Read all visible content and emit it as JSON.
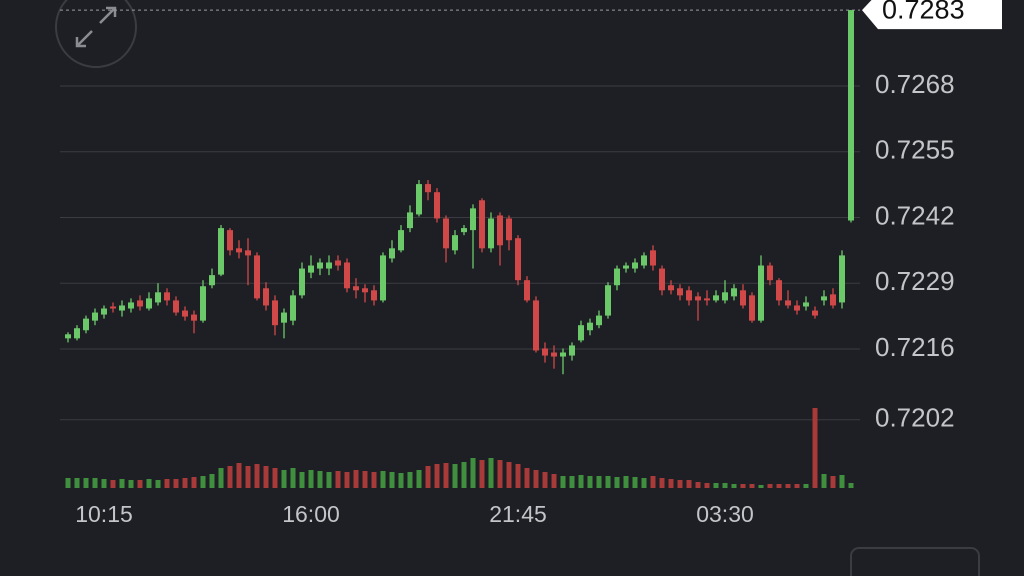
{
  "chart_data": {
    "type": "candlestick",
    "categories": [
      null,
      null,
      null,
      null,
      "10:15",
      null,
      null,
      null,
      null,
      null,
      null,
      null,
      null,
      null,
      null,
      null,
      null,
      null,
      null,
      null,
      null,
      null,
      null,
      null,
      null,
      null,
      null,
      "16:00",
      null,
      null,
      null,
      null,
      null,
      null,
      null,
      null,
      null,
      null,
      null,
      null,
      null,
      null,
      null,
      null,
      null,
      null,
      null,
      null,
      null,
      null,
      "21:45",
      null,
      null,
      null,
      null,
      null,
      null,
      null,
      null,
      null,
      null,
      null,
      null,
      null,
      null,
      null,
      null,
      null,
      null,
      null,
      null,
      null,
      null,
      "03:30",
      null,
      null,
      null,
      null,
      null,
      null,
      null,
      null,
      null,
      null,
      null,
      null,
      null,
      null
    ],
    "open": [
      0.72181,
      0.72181,
      0.72197,
      0.72216,
      0.72228,
      0.72244,
      0.72236,
      0.7224,
      0.72256,
      0.7224,
      0.72252,
      0.72272,
      0.72256,
      0.72236,
      0.72228,
      0.72216,
      0.72286,
      0.72307,
      0.72395,
      0.72359,
      0.72355,
      0.72345,
      0.7228,
      0.72256,
      0.72212,
      0.72216,
      0.72266,
      0.72311,
      0.72319,
      0.72319,
      0.72335,
      0.72331,
      0.72284,
      0.7228,
      0.72276,
      0.72256,
      0.72339,
      0.72355,
      0.72399,
      0.72426,
      0.72486,
      0.7247,
      0.72418,
      0.72355,
      0.72391,
      0.72395,
      0.72454,
      0.72359,
      0.72424,
      0.72418,
      0.72379,
      0.72296,
      0.72256,
      0.72161,
      0.72153,
      0.72145,
      0.72147,
      0.72177,
      0.72197,
      0.72207,
      0.72226,
      0.72286,
      0.72319,
      0.72319,
      0.72325,
      0.72355,
      0.72319,
      0.72286,
      0.7228,
      0.72276,
      0.72264,
      0.7226,
      0.72256,
      0.72256,
      0.72264,
      0.72276,
      0.72266,
      0.72216,
      0.72325,
      0.72296,
      0.72256,
      0.72246,
      0.72244,
      0.72236,
      0.72256,
      0.72268,
      0.72252,
      0.72414
    ],
    "high": [
      0.72193,
      0.72207,
      0.72226,
      0.7224,
      0.72246,
      0.72252,
      0.72256,
      0.7226,
      0.72266,
      0.72272,
      0.7229,
      0.7228,
      0.72264,
      0.72244,
      0.72236,
      0.72296,
      0.72319,
      0.72405,
      0.72399,
      0.72375,
      0.72379,
      0.72351,
      0.72292,
      0.72266,
      0.7224,
      0.72276,
      0.72331,
      0.72345,
      0.72339,
      0.72345,
      0.72345,
      0.72339,
      0.723,
      0.72288,
      0.72286,
      0.72351,
      0.72375,
      0.72405,
      0.72444,
      0.72494,
      0.72494,
      0.72478,
      0.72424,
      0.72395,
      0.72405,
      0.72446,
      0.72458,
      0.7243,
      0.7243,
      0.72424,
      0.72385,
      0.72304,
      0.72264,
      0.72173,
      0.72167,
      0.72161,
      0.72173,
      0.72216,
      0.7222,
      0.72236,
      0.72292,
      0.72325,
      0.72331,
      0.72339,
      0.72351,
      0.72365,
      0.72325,
      0.72296,
      0.72288,
      0.72284,
      0.72272,
      0.72276,
      0.72276,
      0.72296,
      0.72288,
      0.72288,
      0.72272,
      0.72345,
      0.72331,
      0.723,
      0.72276,
      0.72256,
      0.72264,
      0.72244,
      0.72276,
      0.7228,
      0.72355,
      0.7283
    ],
    "low": [
      0.72173,
      0.72177,
      0.72191,
      0.72207,
      0.7222,
      0.72232,
      0.72224,
      0.72232,
      0.72236,
      0.72236,
      0.72246,
      0.72246,
      0.72226,
      0.72216,
      0.72191,
      0.72212,
      0.7228,
      0.72304,
      0.72345,
      0.72339,
      0.72286,
      0.72256,
      0.72236,
      0.72187,
      0.72181,
      0.72207,
      0.7226,
      0.723,
      0.72306,
      0.72306,
      0.72315,
      0.72272,
      0.7226,
      0.72252,
      0.72246,
      0.72252,
      0.72331,
      0.72351,
      0.72391,
      0.72422,
      0.72454,
      0.7241,
      0.72331,
      0.72347,
      0.72385,
      0.72319,
      0.72351,
      0.72351,
      0.72325,
      0.72355,
      0.72286,
      0.72252,
      0.72153,
      0.72133,
      0.72121,
      0.7211,
      0.72137,
      0.72173,
      0.72187,
      0.72201,
      0.7222,
      0.72276,
      0.72311,
      0.72311,
      0.72319,
      0.72315,
      0.72266,
      0.72268,
      0.72256,
      0.72246,
      0.72216,
      0.72246,
      0.72252,
      0.7225,
      0.72256,
      0.7224,
      0.72212,
      0.72212,
      0.72286,
      0.72246,
      0.7224,
      0.72228,
      0.72236,
      0.7222,
      0.72246,
      0.7224,
      0.7224,
      0.7241
    ],
    "close": [
      0.72189,
      0.72201,
      0.7222,
      0.72232,
      0.7224,
      0.7224,
      0.72246,
      0.72252,
      0.72244,
      0.7226,
      0.72272,
      0.72256,
      0.72232,
      0.72224,
      0.72216,
      0.72284,
      0.72306,
      0.72399,
      0.72355,
      0.72351,
      0.72345,
      0.7226,
      0.72246,
      0.72207,
      0.72232,
      0.72266,
      0.72319,
      0.72325,
      0.72331,
      0.72331,
      0.72325,
      0.7228,
      0.72276,
      0.72272,
      0.72256,
      0.72345,
      0.72359,
      0.72395,
      0.7243,
      0.72486,
      0.7247,
      0.72418,
      0.72359,
      0.72385,
      0.72399,
      0.72438,
      0.72359,
      0.72418,
      0.72365,
      0.72375,
      0.72296,
      0.72256,
      0.72157,
      0.72147,
      0.72145,
      0.72153,
      0.72167,
      0.72207,
      0.72212,
      0.72226,
      0.72286,
      0.72319,
      0.72325,
      0.72331,
      0.72345,
      0.72325,
      0.72276,
      0.72276,
      0.72266,
      0.72256,
      0.72256,
      0.72256,
      0.72266,
      0.72272,
      0.7228,
      0.72246,
      0.72216,
      0.72325,
      0.72296,
      0.72256,
      0.72246,
      0.72236,
      0.72252,
      0.72226,
      0.72264,
      0.72246,
      0.72345,
      0.7283
    ],
    "volume": [
      10,
      10,
      10,
      10,
      9,
      8,
      9,
      8,
      8,
      9,
      8,
      9,
      9,
      10,
      11,
      12,
      14,
      20,
      22,
      25,
      22,
      24,
      22,
      20,
      18,
      20,
      16,
      18,
      17,
      16,
      17,
      16,
      18,
      17,
      16,
      17,
      16,
      15,
      16,
      18,
      22,
      24,
      25,
      24,
      26,
      30,
      28,
      30,
      28,
      26,
      24,
      20,
      18,
      16,
      14,
      12,
      12,
      13,
      12,
      12,
      12,
      11,
      12,
      11,
      10,
      12,
      10,
      9,
      8,
      8,
      6,
      5,
      5,
      5,
      4,
      4,
      4,
      3,
      4,
      4,
      4,
      4,
      4,
      80,
      14,
      12,
      13,
      5
    ],
    "up_color": "#6cc96a",
    "down_color": "#d04848",
    "up_volume_color": "#3f8f3f",
    "down_volume_color": "#a83a3a",
    "current_price": 0.7283,
    "ylim": [
      0.7198,
      0.7285
    ],
    "yticks": [
      0.7268,
      0.7255,
      0.7242,
      0.7229,
      0.7216,
      0.7202
    ],
    "grid": true
  }
}
